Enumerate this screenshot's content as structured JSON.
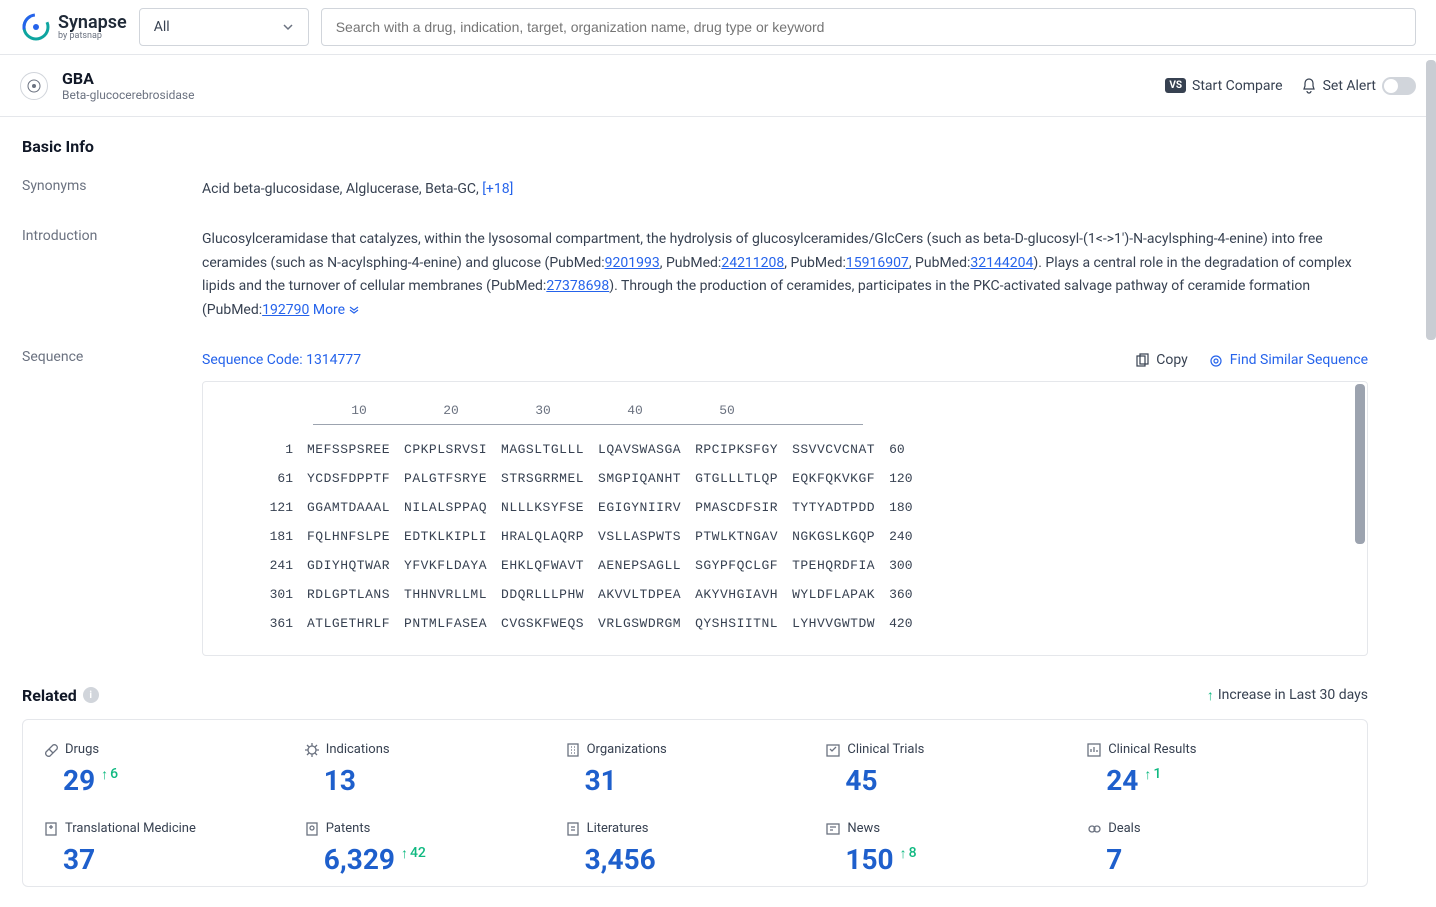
{
  "brand": {
    "name": "Synapse",
    "by": "by patsnap"
  },
  "search": {
    "filter": "All",
    "placeholder": "Search with a drug, indication, target, organization name, drug type or keyword"
  },
  "page": {
    "title": "GBA",
    "subtitle": "Beta-glucocerebrosidase",
    "compare": "Start Compare",
    "alert": "Set Alert"
  },
  "basic": {
    "heading": "Basic Info",
    "synonyms_label": "Synonyms",
    "synonyms": "Acid beta-glucosidase,  Alglucerase,  Beta-GC,  ",
    "synonyms_more": "[+18]",
    "intro_label": "Introduction",
    "intro_p1": "Glucosylceramidase that catalyzes, within the lysosomal compartment, the hydrolysis of glucosylceramides/GlcCers (such as beta-D-glucosyl-(1<->1')-N-acylsphing-4-enine) into free ceramides (such as N-acylsphing-4-enine) and glucose (PubMed:",
    "pm1": "9201993",
    "intro_p2": ", PubMed:",
    "pm2": "24211208",
    "intro_p3": ", PubMed:",
    "pm3": "15916907",
    "intro_p4": ", PubMed:",
    "pm4": "32144204",
    "intro_p5": "). Plays a central role in the degradation of complex lipids and the turnover of cellular membranes (PubMed:",
    "pm5": "27378698",
    "intro_p6": "). Through the production of ceramides, participates in the PKC-activated salvage pathway of ceramide formation (PubMed:",
    "pm6": "192790",
    "more": "More",
    "seq_label": "Sequence",
    "seq_code": "Sequence Code: 1314777",
    "copy": "Copy",
    "find": "Find Similar Sequence",
    "ruler": [
      "10",
      "20",
      "30",
      "40",
      "50"
    ],
    "sequence": [
      {
        "l": "1",
        "s": [
          "MEFSSPSREE",
          "CPKPLSRVSI",
          "MAGSLTGLLL",
          "LQAVSWASGA",
          "RPCIPKSFGY",
          "SSVVCVCNAT"
        ],
        "r": "60"
      },
      {
        "l": "61",
        "s": [
          "YCDSFDPPTF",
          "PALGTFSRYE",
          "STRSGRRMEL",
          "SMGPIQANHT",
          "GTGLLLTLQP",
          "EQKFQKVKGF"
        ],
        "r": "120"
      },
      {
        "l": "121",
        "s": [
          "GGAMTDAAAL",
          "NILALSPPAQ",
          "NLLLKSYFSE",
          "EGIGYNIIRV",
          "PMASCDFSIR",
          "TYTYADTPDD"
        ],
        "r": "180"
      },
      {
        "l": "181",
        "s": [
          "FQLHNFSLPE",
          "EDTKLKIPLI",
          "HRALQLAQRP",
          "VSLLASPWTS",
          "PTWLKTNGAV",
          "NGKGSLKGQP"
        ],
        "r": "240"
      },
      {
        "l": "241",
        "s": [
          "GDIYHQTWAR",
          "YFVKFLDAYA",
          "EHKLQFWAVT",
          "AENEPSAGLL",
          "SGYPFQCLGF",
          "TPEHQRDFIA"
        ],
        "r": "300"
      },
      {
        "l": "301",
        "s": [
          "RDLGPTLANS",
          "THHNVRLLML",
          "DDQRLLLPHW",
          "AKVVLTDPEA",
          "AKYVHGIAVH",
          "WYLDFLAPAK"
        ],
        "r": "360"
      },
      {
        "l": "361",
        "s": [
          "ATLGETHRLF",
          "PNTMLFASEA",
          "CVGSKFWEQS",
          "VRLGSWDRGM",
          "QYSHSIITNL",
          "LYHVVGWTDW"
        ],
        "r": "420"
      }
    ]
  },
  "related": {
    "heading": "Related",
    "legend": "Increase in Last 30 days",
    "stats": [
      {
        "label": "Drugs",
        "value": "29",
        "delta": "6",
        "icon": "pill"
      },
      {
        "label": "Indications",
        "value": "13",
        "delta": "",
        "icon": "virus"
      },
      {
        "label": "Organizations",
        "value": "31",
        "delta": "",
        "icon": "org"
      },
      {
        "label": "Clinical Trials",
        "value": "45",
        "delta": "",
        "icon": "trial"
      },
      {
        "label": "Clinical Results",
        "value": "24",
        "delta": "1",
        "icon": "result"
      },
      {
        "label": "Translational Medicine",
        "value": "37",
        "delta": "",
        "icon": "med"
      },
      {
        "label": "Patents",
        "value": "6,329",
        "delta": "42",
        "icon": "patent"
      },
      {
        "label": "Literatures",
        "value": "3,456",
        "delta": "",
        "icon": "lit"
      },
      {
        "label": "News",
        "value": "150",
        "delta": "8",
        "icon": "news"
      },
      {
        "label": "Deals",
        "value": "7",
        "delta": "",
        "icon": "deal"
      }
    ]
  }
}
